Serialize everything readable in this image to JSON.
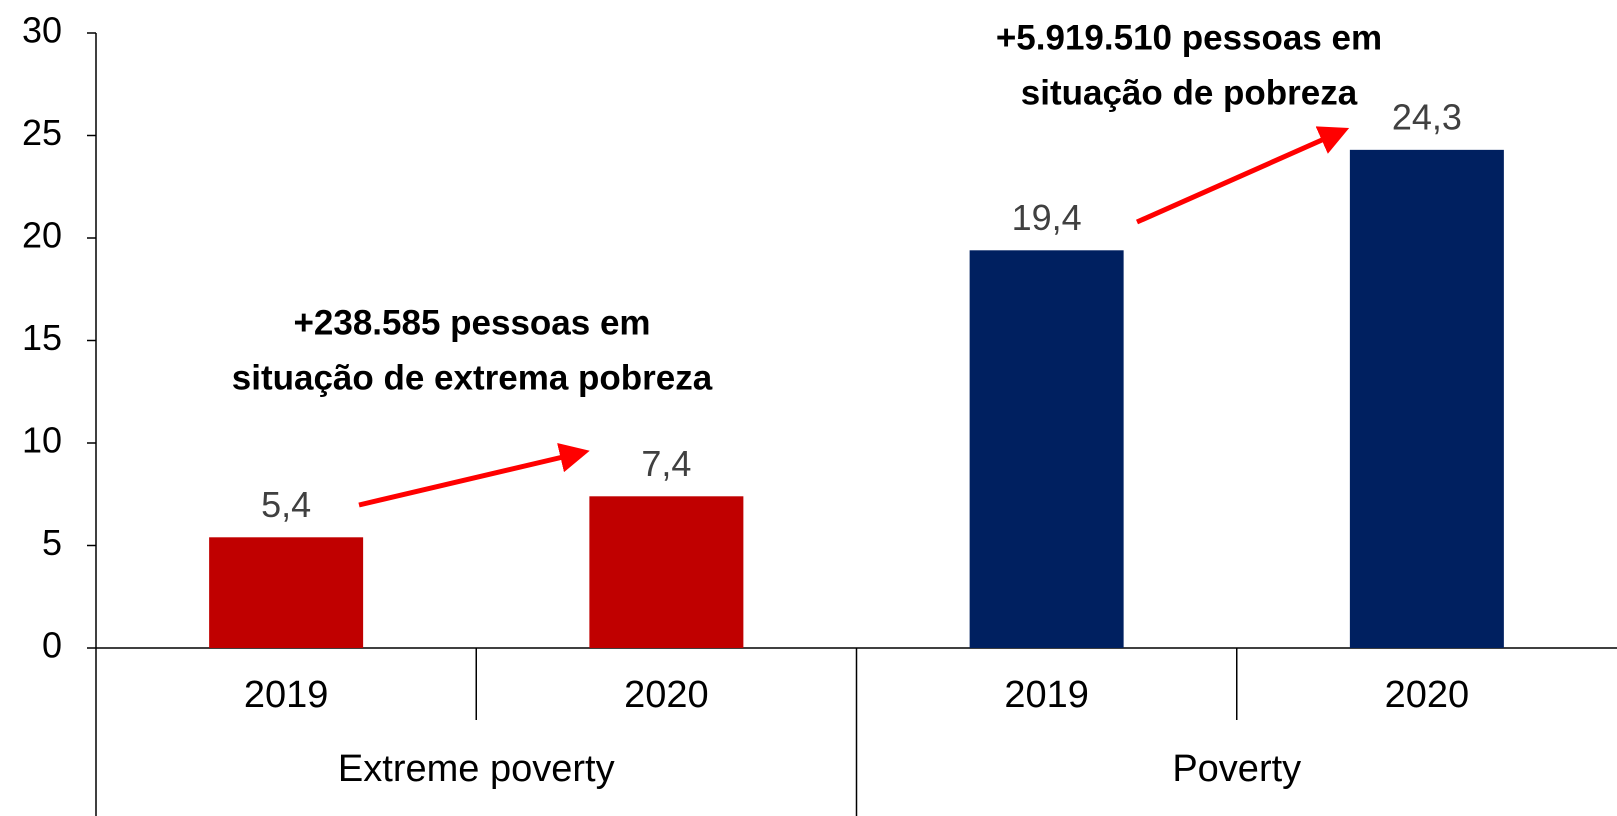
{
  "chart_data": {
    "type": "bar",
    "categories": [
      "2019",
      "2020",
      "2019",
      "2020"
    ],
    "groups": [
      {
        "name": "Extreme poverty",
        "color": "#c00000"
      },
      {
        "name": "Poverty",
        "color": "#002060"
      }
    ],
    "values": [
      5.4,
      7.4,
      19.4,
      24.3
    ],
    "value_labels": [
      "5,4",
      "7,4",
      "19,4",
      "24,3"
    ],
    "ylim": [
      0,
      30
    ],
    "yticks": [
      0,
      5,
      10,
      15,
      20,
      25,
      30
    ],
    "grid": false,
    "annotations": [
      [
        "+238.585 pessoas em",
        "situação de extrema pobreza"
      ],
      [
        "+5.919.510 pessoas em",
        "situação de pobreza"
      ]
    ]
  }
}
